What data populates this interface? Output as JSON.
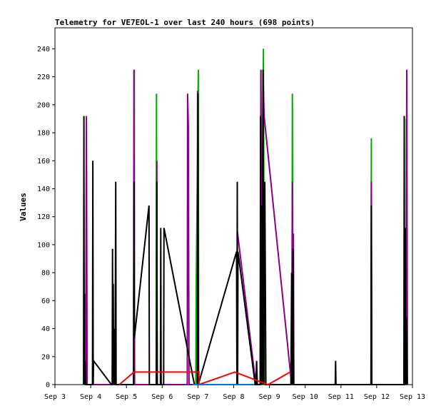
{
  "chart_data": {
    "type": "line",
    "title": "Telemetry for VE7EOL-1 over last 240 hours (698 points)",
    "xlabel": "",
    "ylabel": "Values",
    "xlim": [
      3,
      13
    ],
    "ylim": [
      0,
      255
    ],
    "x_ticks": [
      {
        "value": 3,
        "label": "Sep 3"
      },
      {
        "value": 4,
        "label": "Sep 4"
      },
      {
        "value": 5,
        "label": "Sep 5"
      },
      {
        "value": 6,
        "label": "Sep 6"
      },
      {
        "value": 7,
        "label": "Sep 7"
      },
      {
        "value": 8,
        "label": "Sep 8"
      },
      {
        "value": 9,
        "label": "Sep 9"
      },
      {
        "value": 10,
        "label": "Sep 10"
      },
      {
        "value": 11,
        "label": "Sep 11"
      },
      {
        "value": 12,
        "label": "Sep 12"
      },
      {
        "value": 13,
        "label": "Sep 13"
      }
    ],
    "y_ticks": [
      0,
      20,
      40,
      60,
      80,
      100,
      120,
      140,
      160,
      180,
      200,
      220,
      240
    ],
    "grid": false,
    "legend": "none",
    "series": [
      {
        "color": "#00aa00",
        "points": [
          [
            3.82,
            0
          ],
          [
            3.83,
            0
          ],
          [
            5.21,
            0
          ],
          [
            5.22,
            225
          ],
          [
            5.23,
            0
          ],
          [
            5.83,
            0
          ],
          [
            5.84,
            208
          ],
          [
            5.85,
            0
          ],
          [
            6.94,
            0
          ],
          [
            6.95,
            65
          ],
          [
            7.0,
            195
          ],
          [
            7.01,
            225
          ],
          [
            7.02,
            0
          ],
          [
            8.75,
            0
          ],
          [
            8.76,
            225
          ],
          [
            8.8,
            0
          ],
          [
            8.83,
            240
          ],
          [
            8.86,
            0
          ],
          [
            9.63,
            0
          ],
          [
            9.64,
            208
          ],
          [
            9.66,
            0
          ],
          [
            11.84,
            0
          ],
          [
            11.85,
            176
          ],
          [
            11.86,
            0
          ],
          [
            12.82,
            0
          ],
          [
            12.83,
            190
          ],
          [
            12.85,
            0
          ]
        ]
      },
      {
        "color": "#880088",
        "points": [
          [
            3.84,
            0
          ],
          [
            3.85,
            65
          ],
          [
            3.86,
            0
          ],
          [
            3.88,
            192
          ],
          [
            3.9,
            0
          ],
          [
            5.2,
            0
          ],
          [
            5.21,
            225
          ],
          [
            5.22,
            0
          ],
          [
            5.84,
            0
          ],
          [
            5.85,
            160
          ],
          [
            5.86,
            0
          ],
          [
            6.7,
            0
          ],
          [
            6.71,
            208
          ],
          [
            6.73,
            185
          ],
          [
            6.75,
            0
          ],
          [
            6.98,
            0
          ],
          [
            6.99,
            210
          ],
          [
            7.01,
            0
          ],
          [
            8.09,
            0
          ],
          [
            8.1,
            110
          ],
          [
            8.62,
            0
          ],
          [
            8.74,
            0
          ],
          [
            8.76,
            225
          ],
          [
            8.78,
            0
          ],
          [
            8.82,
            225
          ],
          [
            8.85,
            192
          ],
          [
            9.62,
            0
          ],
          [
            9.64,
            145
          ],
          [
            9.66,
            0
          ],
          [
            9.67,
            108
          ],
          [
            9.68,
            0
          ],
          [
            11.84,
            0
          ],
          [
            11.85,
            145
          ],
          [
            11.86,
            0
          ],
          [
            12.82,
            0
          ],
          [
            12.84,
            225
          ],
          [
            12.86,
            0
          ]
        ]
      },
      {
        "color": "#000000",
        "points": [
          [
            3.8,
            0
          ],
          [
            3.81,
            192
          ],
          [
            3.82,
            0
          ],
          [
            3.84,
            17
          ],
          [
            3.86,
            0
          ],
          [
            4.05,
            0
          ],
          [
            4.06,
            160
          ],
          [
            4.07,
            0
          ],
          [
            4.08,
            17
          ],
          [
            4.58,
            0
          ],
          [
            4.6,
            0
          ],
          [
            4.61,
            97
          ],
          [
            4.62,
            0
          ],
          [
            4.63,
            72
          ],
          [
            4.64,
            0
          ],
          [
            4.66,
            40
          ],
          [
            4.68,
            0
          ],
          [
            4.7,
            145
          ],
          [
            4.71,
            0
          ],
          [
            5.2,
            0
          ],
          [
            5.21,
            145
          ],
          [
            5.22,
            33
          ],
          [
            5.63,
            128
          ],
          [
            5.64,
            0
          ],
          [
            5.84,
            0
          ],
          [
            5.85,
            145
          ],
          [
            5.86,
            0
          ],
          [
            5.95,
            0
          ],
          [
            5.96,
            112
          ],
          [
            5.97,
            0
          ],
          [
            6.04,
            0
          ],
          [
            6.05,
            112
          ],
          [
            6.9,
            0
          ],
          [
            6.99,
            0
          ],
          [
            7.0,
            208
          ],
          [
            7.01,
            0
          ],
          [
            8.08,
            95
          ],
          [
            8.09,
            0
          ],
          [
            8.09,
            0
          ],
          [
            8.1,
            145
          ],
          [
            8.11,
            0
          ],
          [
            8.12,
            95
          ],
          [
            8.6,
            0
          ],
          [
            8.62,
            0
          ],
          [
            8.64,
            17
          ],
          [
            8.66,
            0
          ],
          [
            8.74,
            0
          ],
          [
            8.75,
            192
          ],
          [
            8.76,
            0
          ],
          [
            8.78,
            128
          ],
          [
            8.8,
            0
          ],
          [
            8.82,
            225
          ],
          [
            8.84,
            0
          ],
          [
            8.87,
            145
          ],
          [
            8.9,
            0
          ],
          [
            9.6,
            0
          ],
          [
            9.62,
            80
          ],
          [
            9.64,
            0
          ],
          [
            9.66,
            97
          ],
          [
            9.68,
            0
          ],
          [
            10.84,
            0
          ],
          [
            10.85,
            17
          ],
          [
            10.86,
            0
          ],
          [
            11.84,
            0
          ],
          [
            11.85,
            128
          ],
          [
            11.86,
            0
          ],
          [
            12.76,
            0
          ],
          [
            12.77,
            192
          ],
          [
            12.78,
            0
          ],
          [
            12.8,
            112
          ],
          [
            12.81,
            0
          ],
          [
            12.83,
            48
          ],
          [
            12.85,
            0
          ]
        ]
      },
      {
        "color": "#ff0000",
        "points": [
          [
            4.8,
            0
          ],
          [
            5.21,
            9
          ],
          [
            6.93,
            9
          ],
          [
            7.03,
            9
          ],
          [
            7.03,
            0
          ],
          [
            8.03,
            9
          ],
          [
            8.96,
            0
          ],
          [
            9.58,
            9
          ]
        ]
      },
      {
        "color": "#0077cc",
        "points": [
          [
            6.85,
            0
          ],
          [
            7.0,
            0
          ],
          [
            8.35,
            0
          ],
          [
            8.58,
            0
          ]
        ]
      }
    ]
  }
}
